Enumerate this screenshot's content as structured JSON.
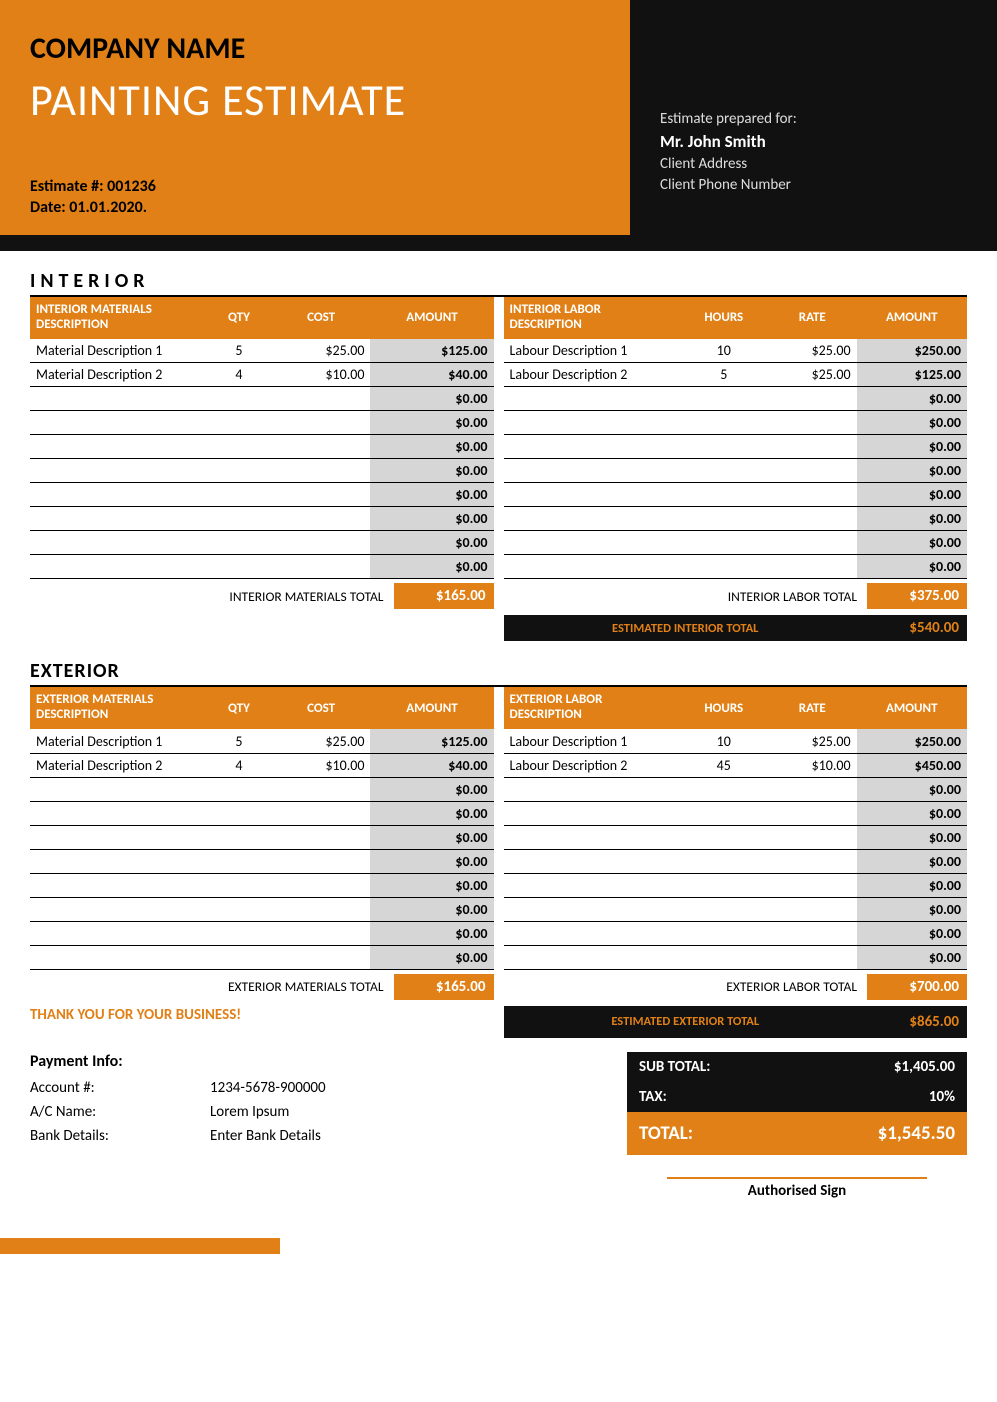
{
  "colors": {
    "accent": "#e08016",
    "dark": "#111111",
    "amtbg": "#d6d6d6"
  },
  "header": {
    "company_name": "COMPANY NAME",
    "doc_title": "PAINTING ESTIMATE",
    "estimate_no_label": "Estimate #: 001236",
    "date_label": "Date: 01.01.2020.",
    "prepared_for_label": "Estimate prepared for:",
    "client_name": "Mr. John Smith",
    "client_address": "Client Address",
    "client_phone": "Client Phone Number"
  },
  "sections": {
    "interior_title": "INTERIOR",
    "exterior_title": "EXTERIOR"
  },
  "columns": {
    "materials_desc_int": "INTERIOR MATERIALS DESCRIPTION",
    "labor_desc_int": "INTERIOR LABOR DESCRIPTION",
    "materials_desc_ext": "EXTERIOR MATERIALS DESCRIPTION",
    "labor_desc_ext": "EXTERIOR LABOR DESCRIPTION",
    "qty": "QTY",
    "cost": "COST",
    "amount": "AMOUNT",
    "hours": "HOURS",
    "rate": "RATE"
  },
  "interior": {
    "materials": [
      {
        "desc": "Material Description 1",
        "qty": "5",
        "cost": "$25.00",
        "amount": "$125.00"
      },
      {
        "desc": "Material Description 2",
        "qty": "4",
        "cost": "$10.00",
        "amount": "$40.00"
      },
      {
        "desc": "",
        "qty": "",
        "cost": "",
        "amount": "$0.00"
      },
      {
        "desc": "",
        "qty": "",
        "cost": "",
        "amount": "$0.00"
      },
      {
        "desc": "",
        "qty": "",
        "cost": "",
        "amount": "$0.00"
      },
      {
        "desc": "",
        "qty": "",
        "cost": "",
        "amount": "$0.00"
      },
      {
        "desc": "",
        "qty": "",
        "cost": "",
        "amount": "$0.00"
      },
      {
        "desc": "",
        "qty": "",
        "cost": "",
        "amount": "$0.00"
      },
      {
        "desc": "",
        "qty": "",
        "cost": "",
        "amount": "$0.00"
      },
      {
        "desc": "",
        "qty": "",
        "cost": "",
        "amount": "$0.00"
      }
    ],
    "labor": [
      {
        "desc": "Labour Description 1",
        "hours": "10",
        "rate": "$25.00",
        "amount": "$250.00"
      },
      {
        "desc": "Labour Description 2",
        "hours": "5",
        "rate": "$25.00",
        "amount": "$125.00"
      },
      {
        "desc": "",
        "hours": "",
        "rate": "",
        "amount": "$0.00"
      },
      {
        "desc": "",
        "hours": "",
        "rate": "",
        "amount": "$0.00"
      },
      {
        "desc": "",
        "hours": "",
        "rate": "",
        "amount": "$0.00"
      },
      {
        "desc": "",
        "hours": "",
        "rate": "",
        "amount": "$0.00"
      },
      {
        "desc": "",
        "hours": "",
        "rate": "",
        "amount": "$0.00"
      },
      {
        "desc": "",
        "hours": "",
        "rate": "",
        "amount": "$0.00"
      },
      {
        "desc": "",
        "hours": "",
        "rate": "",
        "amount": "$0.00"
      },
      {
        "desc": "",
        "hours": "",
        "rate": "",
        "amount": "$0.00"
      }
    ],
    "materials_total_label": "INTERIOR MATERIALS TOTAL",
    "materials_total": "$165.00",
    "labor_total_label": "INTERIOR LABOR TOTAL",
    "labor_total": "$375.00",
    "estimated_total_label": "ESTIMATED INTERIOR  TOTAL",
    "estimated_total": "$540.00"
  },
  "exterior": {
    "materials": [
      {
        "desc": "Material Description 1",
        "qty": "5",
        "cost": "$25.00",
        "amount": "$125.00"
      },
      {
        "desc": "Material Description 2",
        "qty": "4",
        "cost": "$10.00",
        "amount": "$40.00"
      },
      {
        "desc": "",
        "qty": "",
        "cost": "",
        "amount": "$0.00"
      },
      {
        "desc": "",
        "qty": "",
        "cost": "",
        "amount": "$0.00"
      },
      {
        "desc": "",
        "qty": "",
        "cost": "",
        "amount": "$0.00"
      },
      {
        "desc": "",
        "qty": "",
        "cost": "",
        "amount": "$0.00"
      },
      {
        "desc": "",
        "qty": "",
        "cost": "",
        "amount": "$0.00"
      },
      {
        "desc": "",
        "qty": "",
        "cost": "",
        "amount": "$0.00"
      },
      {
        "desc": "",
        "qty": "",
        "cost": "",
        "amount": "$0.00"
      },
      {
        "desc": "",
        "qty": "",
        "cost": "",
        "amount": "$0.00"
      }
    ],
    "labor": [
      {
        "desc": "Labour Description 1",
        "hours": "10",
        "rate": "$25.00",
        "amount": "$250.00"
      },
      {
        "desc": "Labour Description 2",
        "hours": "45",
        "rate": "$10.00",
        "amount": "$450.00"
      },
      {
        "desc": "",
        "hours": "",
        "rate": "",
        "amount": "$0.00"
      },
      {
        "desc": "",
        "hours": "",
        "rate": "",
        "amount": "$0.00"
      },
      {
        "desc": "",
        "hours": "",
        "rate": "",
        "amount": "$0.00"
      },
      {
        "desc": "",
        "hours": "",
        "rate": "",
        "amount": "$0.00"
      },
      {
        "desc": "",
        "hours": "",
        "rate": "",
        "amount": "$0.00"
      },
      {
        "desc": "",
        "hours": "",
        "rate": "",
        "amount": "$0.00"
      },
      {
        "desc": "",
        "hours": "",
        "rate": "",
        "amount": "$0.00"
      },
      {
        "desc": "",
        "hours": "",
        "rate": "",
        "amount": "$0.00"
      }
    ],
    "materials_total_label": "EXTERIOR MATERIALS TOTAL",
    "materials_total": "$165.00",
    "labor_total_label": "EXTERIOR LABOR TOTAL",
    "labor_total": "$700.00",
    "estimated_total_label": "ESTIMATED EXTERIOR  TOTAL",
    "estimated_total": "$865.00"
  },
  "footer": {
    "thanks": "THANK YOU FOR YOUR BUSINESS!",
    "payment_title": "Payment Info:",
    "rows": [
      {
        "k": "Account #:",
        "v": "1234-5678-900000"
      },
      {
        "k": "A/C Name:",
        "v": "Lorem Ipsum"
      },
      {
        "k": "Bank Details:",
        "v": "Enter Bank Details"
      }
    ],
    "subtotal_label": "SUB TOTAL:",
    "subtotal": "$1,405.00",
    "tax_label": "TAX:",
    "tax": "10%",
    "total_label": "TOTAL:",
    "total": "$1,545.50",
    "sign": "Authorised Sign"
  }
}
